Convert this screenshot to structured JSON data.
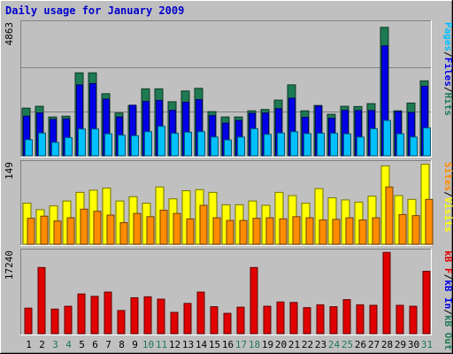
{
  "page": {
    "background": "#c0c0c0",
    "panel_background": "#c0c0c0"
  },
  "colors": {
    "hits": "#1e7a52",
    "files": "#0000e6",
    "pages": "#00c0ff",
    "visits": "#ffff00",
    "sites": "#ff8c00",
    "kbin": "#1e7a52",
    "kbout": "#0000e6",
    "kbf": "#e00000",
    "title": "#0000cc",
    "weekend_day": "#1e7a52",
    "weekday": "#000000"
  },
  "chart_data": [
    {
      "type": "bar",
      "title": "Daily usage for January 2009",
      "panel": "hits-files-pages",
      "ymax_label": "4863",
      "ymax": 4863,
      "right_label_parts": [
        {
          "text": "Pages",
          "color": "#00c0ff"
        },
        {
          "text": "/",
          "color": "#000000"
        },
        {
          "text": "Files",
          "color": "#0000e6"
        },
        {
          "text": "/",
          "color": "#000000"
        },
        {
          "text": "Hits",
          "color": "#1e7a52"
        }
      ],
      "categories": [
        "1",
        "2",
        "3",
        "4",
        "5",
        "6",
        "7",
        "8",
        "9",
        "10",
        "11",
        "12",
        "13",
        "14",
        "15",
        "16",
        "17",
        "18",
        "19",
        "20",
        "21",
        "22",
        "23",
        "24",
        "25",
        "26",
        "27",
        "28",
        "29",
        "30",
        "31"
      ],
      "series": [
        {
          "name": "Hits",
          "values": [
            1780,
            1850,
            1450,
            1480,
            3100,
            3100,
            2320,
            1600,
            1880,
            2500,
            2500,
            2020,
            2420,
            2520,
            1650,
            1450,
            1450,
            1680,
            1730,
            2080,
            2650,
            1680,
            1880,
            1550,
            1850,
            1840,
            1950,
            4800,
            1680,
            1970,
            2800
          ]
        },
        {
          "name": "Files",
          "values": [
            1480,
            1600,
            1360,
            1380,
            2650,
            2700,
            2120,
            1450,
            1890,
            2030,
            2070,
            1700,
            2000,
            2100,
            1500,
            1220,
            1320,
            1590,
            1600,
            1760,
            2150,
            1440,
            1860,
            1400,
            1700,
            1690,
            1690,
            4110,
            1650,
            1620,
            2600
          ]
        },
        {
          "name": "Pages",
          "values": [
            600,
            850,
            500,
            680,
            1000,
            1000,
            820,
            770,
            750,
            900,
            1100,
            840,
            880,
            900,
            700,
            590,
            700,
            1010,
            800,
            850,
            900,
            830,
            840,
            840,
            820,
            700,
            1010,
            1320,
            820,
            700,
            1040
          ]
        }
      ]
    },
    {
      "type": "bar",
      "panel": "visits-sites",
      "ymax_label": "149",
      "ymax": 149,
      "right_label_parts": [
        {
          "text": "Sites",
          "color": "#ff8c00"
        },
        {
          "text": "/",
          "color": "#000000"
        },
        {
          "text": "Visits",
          "color": "#ffff00"
        }
      ],
      "categories": [
        "1",
        "2",
        "3",
        "4",
        "5",
        "6",
        "7",
        "8",
        "9",
        "10",
        "11",
        "12",
        "13",
        "14",
        "15",
        "16",
        "17",
        "18",
        "19",
        "20",
        "21",
        "22",
        "23",
        "24",
        "25",
        "26",
        "27",
        "28",
        "29",
        "30",
        "31"
      ],
      "series": [
        {
          "name": "Visits",
          "values": [
            76,
            64,
            71,
            80,
            96,
            100,
            104,
            80,
            88,
            76,
            106,
            84,
            99,
            101,
            96,
            73,
            73,
            80,
            72,
            96,
            90,
            76,
            103,
            86,
            82,
            78,
            89,
            145,
            90,
            83,
            148
          ]
        },
        {
          "name": "Sites",
          "values": [
            48,
            52,
            43,
            49,
            65,
            61,
            54,
            40,
            57,
            51,
            63,
            57,
            47,
            72,
            49,
            44,
            44,
            48,
            49,
            47,
            51,
            49,
            45,
            46,
            49,
            45,
            49,
            106,
            55,
            53,
            83
          ]
        }
      ]
    },
    {
      "type": "bar",
      "panel": "kbytes",
      "ymax_label": "17240",
      "ymax": 17240,
      "right_label_parts": [
        {
          "text": "kB F",
          "color": "#e00000"
        },
        {
          "text": "/",
          "color": "#000000"
        },
        {
          "text": "kB In",
          "color": "#0000e6"
        },
        {
          "text": "/",
          "color": "#000000"
        },
        {
          "text": "kB Out",
          "color": "#1e7a52"
        }
      ],
      "categories": [
        "1",
        "2",
        "3",
        "4",
        "5",
        "6",
        "7",
        "8",
        "9",
        "10",
        "11",
        "12",
        "13",
        "14",
        "15",
        "16",
        "17",
        "18",
        "19",
        "20",
        "21",
        "22",
        "23",
        "24",
        "25",
        "26",
        "27",
        "28",
        "29",
        "30",
        "31"
      ],
      "series": [
        {
          "name": "kB F",
          "values": [
            5400,
            14000,
            5200,
            5800,
            8400,
            7900,
            8800,
            4900,
            7600,
            7800,
            7300,
            4500,
            6400,
            8800,
            5700,
            4300,
            5600,
            14000,
            5800,
            6700,
            6600,
            5500,
            6100,
            5700,
            7200,
            6100,
            6000,
            17200,
            6000,
            5800,
            13200
          ]
        }
      ]
    }
  ],
  "day_label_colors": [
    "#000000",
    "#000000",
    "#1e7a52",
    "#1e7a52",
    "#000000",
    "#000000",
    "#000000",
    "#000000",
    "#000000",
    "#1e7a52",
    "#1e7a52",
    "#000000",
    "#000000",
    "#000000",
    "#000000",
    "#000000",
    "#1e7a52",
    "#1e7a52",
    "#000000",
    "#000000",
    "#000000",
    "#000000",
    "#000000",
    "#1e7a52",
    "#1e7a52",
    "#000000",
    "#000000",
    "#000000",
    "#000000",
    "#000000",
    "#1e7a52"
  ]
}
